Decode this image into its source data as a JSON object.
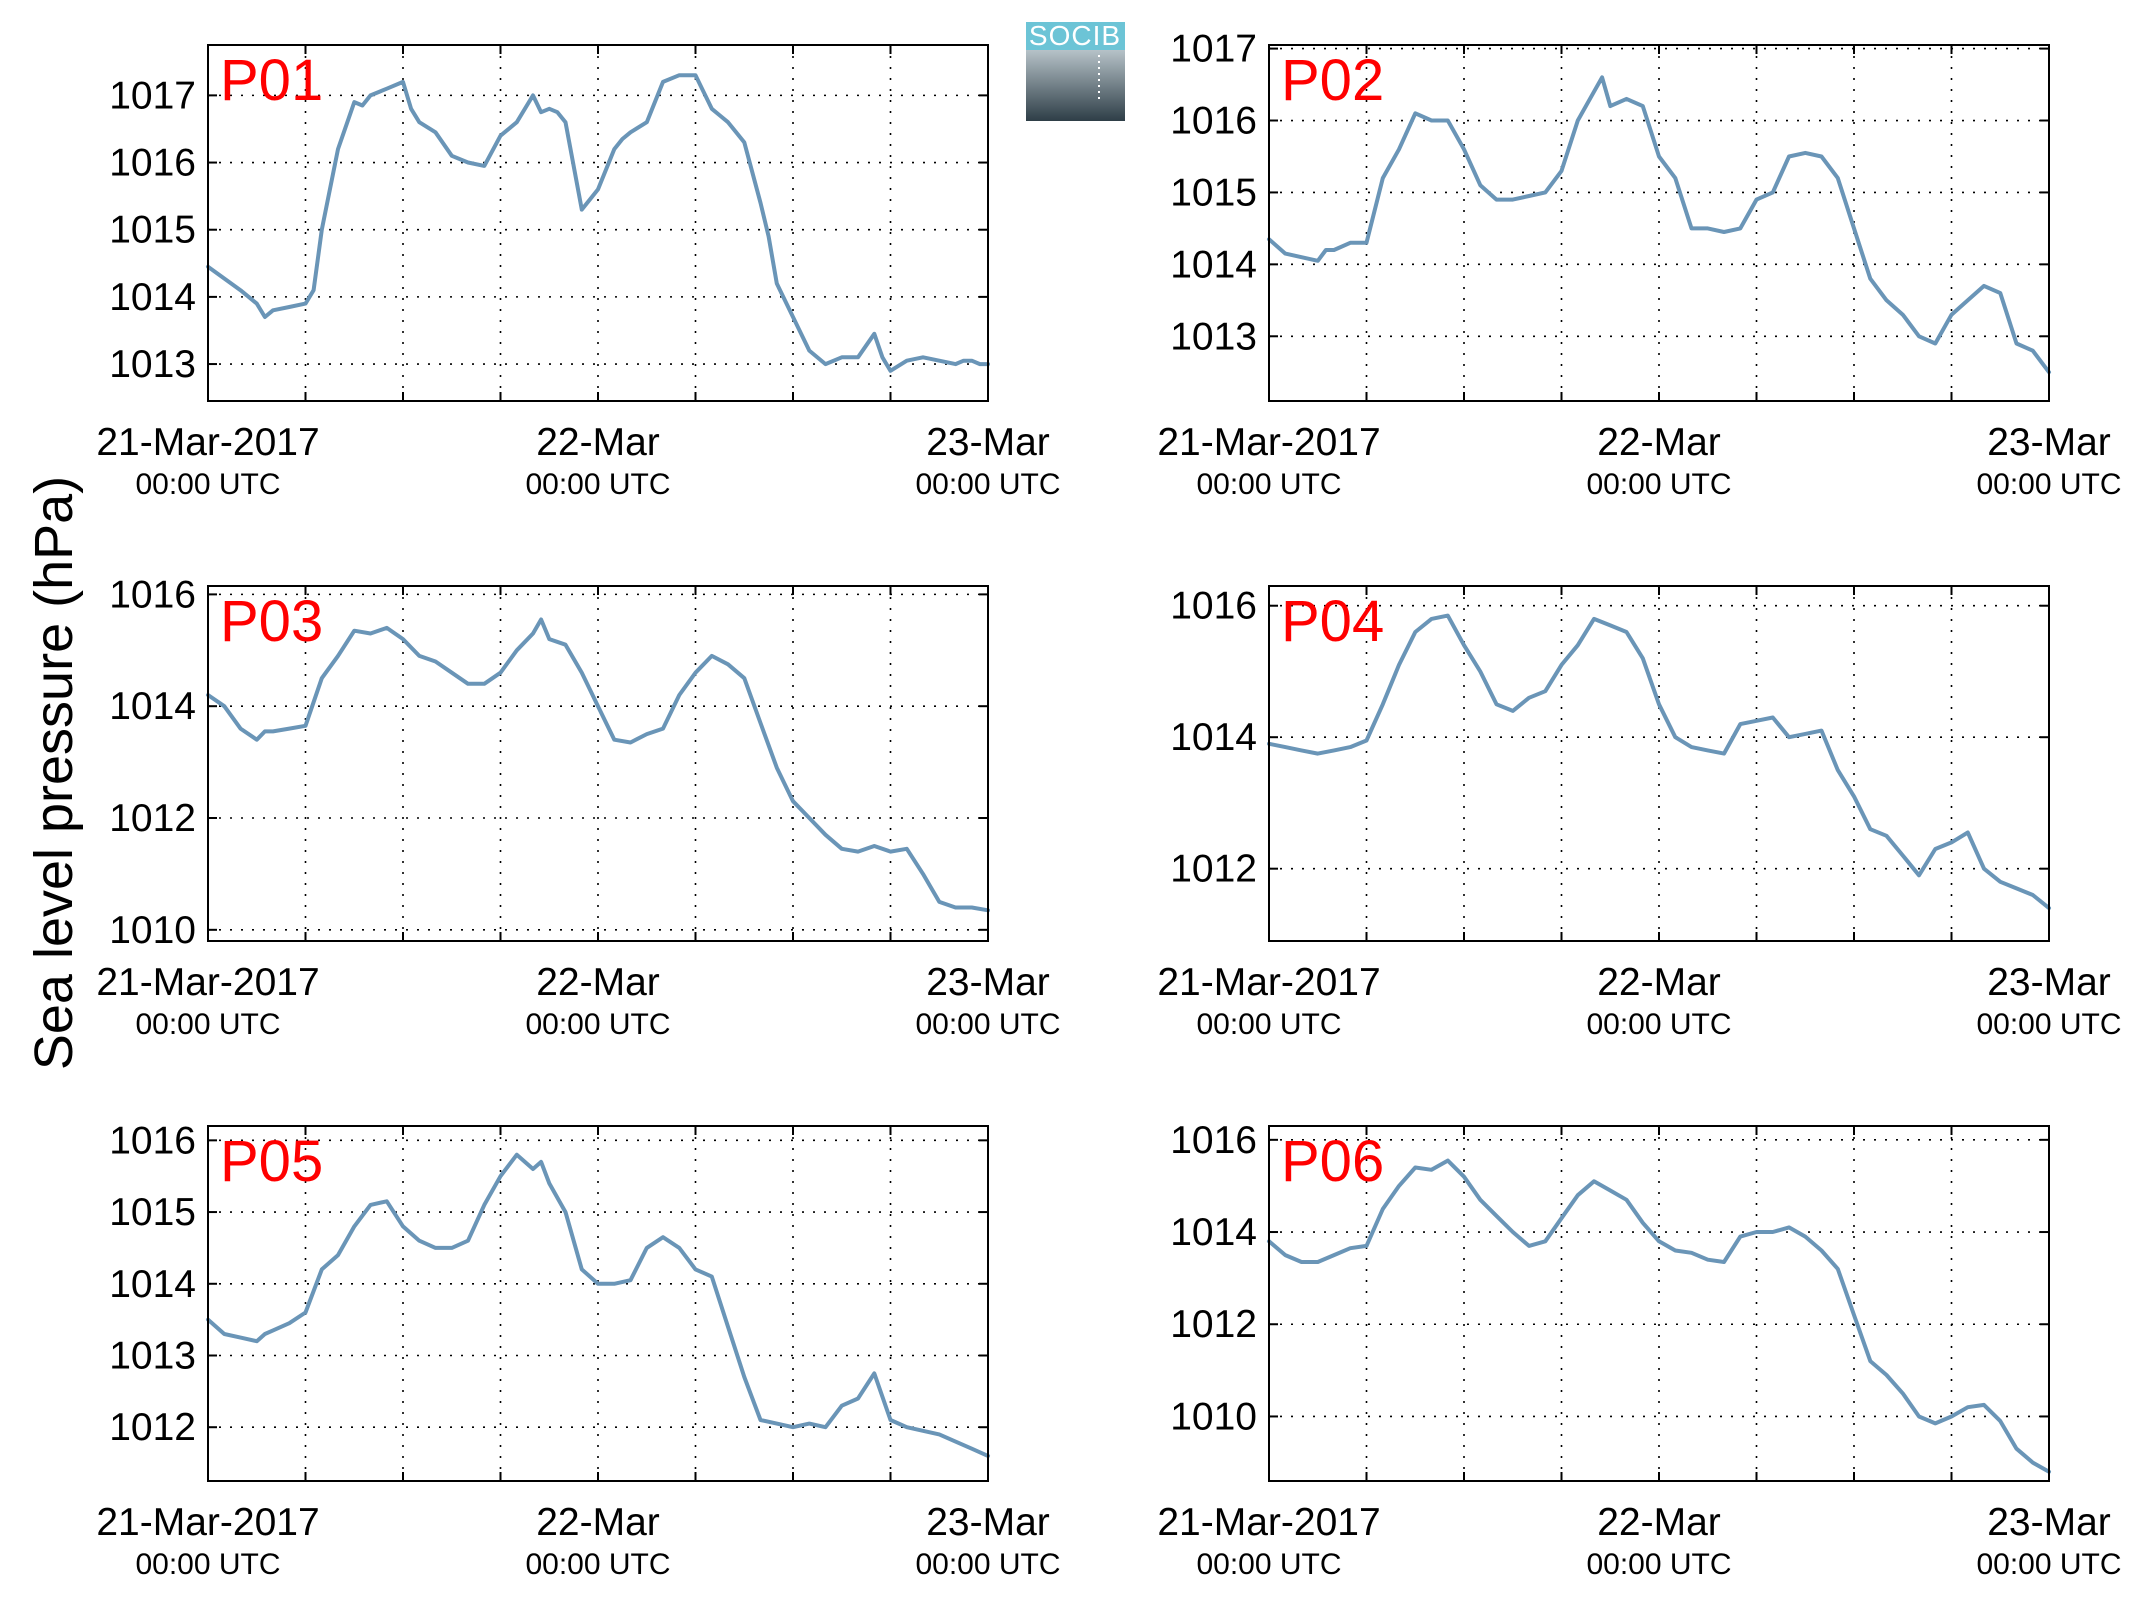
{
  "figure": {
    "ylabel": "Sea level pressure (hPa)",
    "logo_text": "SOCIB"
  },
  "chart_data": [
    {
      "type": "line",
      "title": "P01",
      "ylabel": "Sea level pressure (hPa)",
      "xlim": [
        0,
        48
      ],
      "ylim": [
        1012.45,
        1017.75
      ],
      "yticks": [
        1013,
        1014,
        1015,
        1016,
        1017
      ],
      "xticks": [
        {
          "x": 0,
          "main": "21-Mar-2017",
          "sub": "00:00 UTC"
        },
        {
          "x": 24,
          "main": "22-Mar",
          "sub": "00:00 UTC"
        },
        {
          "x": 48,
          "main": "23-Mar",
          "sub": "00:00 UTC"
        }
      ],
      "xgrid": [
        6,
        12,
        18,
        24,
        30,
        36,
        42
      ],
      "series": [
        {
          "color": "#6a95b7",
          "x": [
            0,
            2,
            3,
            3.5,
            4,
            5,
            6,
            6.5,
            7,
            8,
            9,
            9.5,
            10,
            11,
            12,
            12.5,
            13,
            14,
            15,
            16,
            17,
            18,
            19,
            20,
            20.5,
            21,
            21.5,
            22,
            23,
            24,
            25,
            25.5,
            26,
            27,
            28,
            29,
            30,
            31,
            31.5,
            32,
            33,
            34,
            34.5,
            35,
            36,
            37,
            38,
            39,
            40,
            41,
            41.5,
            42,
            43,
            44,
            45,
            46,
            46.5,
            47,
            47.5,
            48
          ],
          "y": [
            1014.45,
            1014.1,
            1013.9,
            1013.7,
            1013.8,
            1013.85,
            1013.9,
            1014.1,
            1015.0,
            1016.2,
            1016.9,
            1016.85,
            1017.0,
            1017.1,
            1017.2,
            1016.8,
            1016.6,
            1016.45,
            1016.1,
            1016.0,
            1015.95,
            1016.4,
            1016.6,
            1017.0,
            1016.75,
            1016.8,
            1016.75,
            1016.6,
            1015.3,
            1015.6,
            1016.2,
            1016.35,
            1016.45,
            1016.6,
            1017.2,
            1017.3,
            1017.3,
            1016.8,
            1016.7,
            1016.6,
            1016.3,
            1015.4,
            1014.9,
            1014.2,
            1013.7,
            1013.2,
            1013.0,
            1013.1,
            1013.1,
            1013.45,
            1013.1,
            1012.9,
            1013.05,
            1013.1,
            1013.05,
            1013.0,
            1013.05,
            1013.05,
            1013.0,
            1013.0
          ]
        }
      ]
    },
    {
      "type": "line",
      "title": "P02",
      "ylabel": "Sea level pressure (hPa)",
      "xlim": [
        0,
        48
      ],
      "ylim": [
        1012.1,
        1017.05
      ],
      "yticks": [
        1013,
        1014,
        1015,
        1016,
        1017
      ],
      "xticks": [
        {
          "x": 0,
          "main": "21-Mar-2017",
          "sub": "00:00 UTC"
        },
        {
          "x": 24,
          "main": "22-Mar",
          "sub": "00:00 UTC"
        },
        {
          "x": 48,
          "main": "23-Mar",
          "sub": "00:00 UTC"
        }
      ],
      "xgrid": [
        6,
        12,
        18,
        24,
        30,
        36,
        42
      ],
      "series": [
        {
          "color": "#6a95b7",
          "x": [
            0,
            1,
            2,
            3,
            3.5,
            4,
            5,
            6,
            7,
            8,
            9,
            10,
            11,
            12,
            13,
            14,
            15,
            16,
            17,
            18,
            19,
            20,
            20.5,
            21,
            22,
            23,
            24,
            25,
            26,
            27,
            28,
            29,
            30,
            31,
            32,
            33,
            34,
            35,
            36,
            37,
            38,
            39,
            40,
            41,
            42,
            43,
            44,
            45,
            46,
            47,
            48
          ],
          "y": [
            1014.35,
            1014.15,
            1014.1,
            1014.05,
            1014.2,
            1014.2,
            1014.3,
            1014.3,
            1015.2,
            1015.6,
            1016.1,
            1016.0,
            1016.0,
            1015.6,
            1015.1,
            1014.9,
            1014.9,
            1014.95,
            1015.0,
            1015.3,
            1016.0,
            1016.4,
            1016.6,
            1016.2,
            1016.3,
            1016.2,
            1015.5,
            1015.2,
            1014.5,
            1014.5,
            1014.45,
            1014.5,
            1014.9,
            1015.0,
            1015.5,
            1015.55,
            1015.5,
            1015.2,
            1014.5,
            1013.8,
            1013.5,
            1013.3,
            1013.0,
            1012.9,
            1013.3,
            1013.5,
            1013.7,
            1013.6,
            1012.9,
            1012.8,
            1012.5
          ]
        }
      ]
    },
    {
      "type": "line",
      "title": "P03",
      "ylabel": "Sea level pressure (hPa)",
      "xlim": [
        0,
        48
      ],
      "ylim": [
        1009.8,
        1016.15
      ],
      "yticks": [
        1010,
        1012,
        1014,
        1016
      ],
      "xticks": [
        {
          "x": 0,
          "main": "21-Mar-2017",
          "sub": "00:00 UTC"
        },
        {
          "x": 24,
          "main": "22-Mar",
          "sub": "00:00 UTC"
        },
        {
          "x": 48,
          "main": "23-Mar",
          "sub": "00:00 UTC"
        }
      ],
      "xgrid": [
        6,
        12,
        18,
        24,
        30,
        36,
        42
      ],
      "series": [
        {
          "color": "#6a95b7",
          "x": [
            0,
            1,
            2,
            3,
            3.5,
            4,
            5,
            6,
            7,
            8,
            9,
            10,
            11,
            12,
            13,
            14,
            15,
            16,
            17,
            18,
            19,
            20,
            20.5,
            21,
            22,
            23,
            24,
            25,
            26,
            27,
            28,
            29,
            30,
            31,
            32,
            33,
            34,
            35,
            36,
            37,
            38,
            39,
            40,
            41,
            42,
            43,
            44,
            45,
            46,
            47,
            48
          ],
          "y": [
            1014.2,
            1014.0,
            1013.6,
            1013.4,
            1013.55,
            1013.55,
            1013.6,
            1013.65,
            1014.5,
            1014.9,
            1015.35,
            1015.3,
            1015.4,
            1015.2,
            1014.9,
            1014.8,
            1014.6,
            1014.4,
            1014.4,
            1014.6,
            1015.0,
            1015.3,
            1015.55,
            1015.2,
            1015.1,
            1014.6,
            1014.0,
            1013.4,
            1013.35,
            1013.5,
            1013.6,
            1014.2,
            1014.6,
            1014.9,
            1014.75,
            1014.5,
            1013.7,
            1012.9,
            1012.3,
            1012.0,
            1011.7,
            1011.45,
            1011.4,
            1011.5,
            1011.4,
            1011.45,
            1011.0,
            1010.5,
            1010.4,
            1010.4,
            1010.35
          ]
        }
      ]
    },
    {
      "type": "line",
      "title": "P04",
      "ylabel": "Sea level pressure (hPa)",
      "xlim": [
        0,
        48
      ],
      "ylim": [
        1010.9,
        1016.3
      ],
      "yticks": [
        1012,
        1014,
        1016
      ],
      "xticks": [
        {
          "x": 0,
          "main": "21-Mar-2017",
          "sub": "00:00 UTC"
        },
        {
          "x": 24,
          "main": "22-Mar",
          "sub": "00:00 UTC"
        },
        {
          "x": 48,
          "main": "23-Mar",
          "sub": "00:00 UTC"
        }
      ],
      "xgrid": [
        6,
        12,
        18,
        24,
        30,
        36,
        42
      ],
      "series": [
        {
          "color": "#6a95b7",
          "x": [
            0,
            1,
            2,
            3,
            4,
            5,
            6,
            7,
            8,
            9,
            10,
            11,
            12,
            13,
            14,
            15,
            16,
            17,
            18,
            19,
            20,
            21,
            22,
            23,
            24,
            25,
            26,
            27,
            28,
            29,
            30,
            31,
            32,
            33,
            34,
            35,
            36,
            37,
            38,
            39,
            40,
            41,
            42,
            43,
            44,
            45,
            46,
            47,
            48
          ],
          "y": [
            1013.9,
            1013.85,
            1013.8,
            1013.75,
            1013.8,
            1013.85,
            1013.95,
            1014.5,
            1015.1,
            1015.6,
            1015.8,
            1015.85,
            1015.4,
            1015.0,
            1014.5,
            1014.4,
            1014.6,
            1014.7,
            1015.1,
            1015.4,
            1015.8,
            1015.7,
            1015.6,
            1015.2,
            1014.5,
            1014.0,
            1013.85,
            1013.8,
            1013.75,
            1014.2,
            1014.25,
            1014.3,
            1014.0,
            1014.05,
            1014.1,
            1013.5,
            1013.1,
            1012.6,
            1012.5,
            1012.2,
            1011.9,
            1012.3,
            1012.4,
            1012.55,
            1012.0,
            1011.8,
            1011.7,
            1011.6,
            1011.4
          ]
        }
      ]
    },
    {
      "type": "line",
      "title": "P05",
      "ylabel": "Sea level pressure (hPa)",
      "xlim": [
        0,
        48
      ],
      "ylim": [
        1011.25,
        1016.2
      ],
      "yticks": [
        1012,
        1013,
        1014,
        1015,
        1016
      ],
      "xticks": [
        {
          "x": 0,
          "main": "21-Mar-2017",
          "sub": "00:00 UTC"
        },
        {
          "x": 24,
          "main": "22-Mar",
          "sub": "00:00 UTC"
        },
        {
          "x": 48,
          "main": "23-Mar",
          "sub": "00:00 UTC"
        }
      ],
      "xgrid": [
        6,
        12,
        18,
        24,
        30,
        36,
        42
      ],
      "series": [
        {
          "color": "#6a95b7",
          "x": [
            0,
            1,
            2,
            3,
            3.5,
            4,
            5,
            6,
            7,
            8,
            9,
            10,
            11,
            12,
            13,
            14,
            15,
            16,
            17,
            18,
            19,
            20,
            20.5,
            21,
            22,
            23,
            24,
            25,
            26,
            27,
            28,
            29,
            30,
            31,
            32,
            33,
            34,
            35,
            36,
            37,
            38,
            39,
            40,
            41,
            42,
            43,
            44,
            45,
            46,
            47,
            48
          ],
          "y": [
            1013.5,
            1013.3,
            1013.25,
            1013.2,
            1013.3,
            1013.35,
            1013.45,
            1013.6,
            1014.2,
            1014.4,
            1014.8,
            1015.1,
            1015.15,
            1014.8,
            1014.6,
            1014.5,
            1014.5,
            1014.6,
            1015.1,
            1015.5,
            1015.8,
            1015.6,
            1015.7,
            1015.4,
            1015.0,
            1014.2,
            1014.0,
            1014.0,
            1014.05,
            1014.5,
            1014.65,
            1014.5,
            1014.2,
            1014.1,
            1013.4,
            1012.7,
            1012.1,
            1012.05,
            1012.0,
            1012.05,
            1012.0,
            1012.3,
            1012.4,
            1012.75,
            1012.1,
            1012.0,
            1011.95,
            1011.9,
            1011.8,
            1011.7,
            1011.6
          ]
        }
      ]
    },
    {
      "type": "line",
      "title": "P06",
      "ylabel": "Sea level pressure (hPa)",
      "xlim": [
        0,
        48
      ],
      "ylim": [
        1008.6,
        1016.3
      ],
      "yticks": [
        1010,
        1012,
        1014,
        1016
      ],
      "xticks": [
        {
          "x": 0,
          "main": "21-Mar-2017",
          "sub": "00:00 UTC"
        },
        {
          "x": 24,
          "main": "22-Mar",
          "sub": "00:00 UTC"
        },
        {
          "x": 48,
          "main": "23-Mar",
          "sub": "00:00 UTC"
        }
      ],
      "xgrid": [
        6,
        12,
        18,
        24,
        30,
        36,
        42
      ],
      "series": [
        {
          "color": "#6a95b7",
          "x": [
            0,
            1,
            2,
            3,
            4,
            5,
            6,
            7,
            8,
            9,
            10,
            11,
            12,
            13,
            14,
            15,
            16,
            17,
            18,
            19,
            20,
            21,
            22,
            23,
            24,
            25,
            26,
            27,
            28,
            29,
            30,
            31,
            32,
            33,
            34,
            35,
            36,
            37,
            38,
            39,
            40,
            41,
            42,
            43,
            44,
            45,
            46,
            47,
            48
          ],
          "y": [
            1013.8,
            1013.5,
            1013.35,
            1013.35,
            1013.5,
            1013.65,
            1013.7,
            1014.5,
            1015.0,
            1015.4,
            1015.35,
            1015.55,
            1015.2,
            1014.7,
            1014.35,
            1014.0,
            1013.7,
            1013.8,
            1014.3,
            1014.8,
            1015.1,
            1014.9,
            1014.7,
            1014.2,
            1013.8,
            1013.6,
            1013.55,
            1013.4,
            1013.35,
            1013.9,
            1014.0,
            1014.0,
            1014.1,
            1013.9,
            1013.6,
            1013.2,
            1012.2,
            1011.2,
            1010.9,
            1010.5,
            1010.0,
            1009.85,
            1010.0,
            1010.2,
            1010.25,
            1009.9,
            1009.3,
            1009.0,
            1008.8
          ]
        }
      ]
    }
  ]
}
